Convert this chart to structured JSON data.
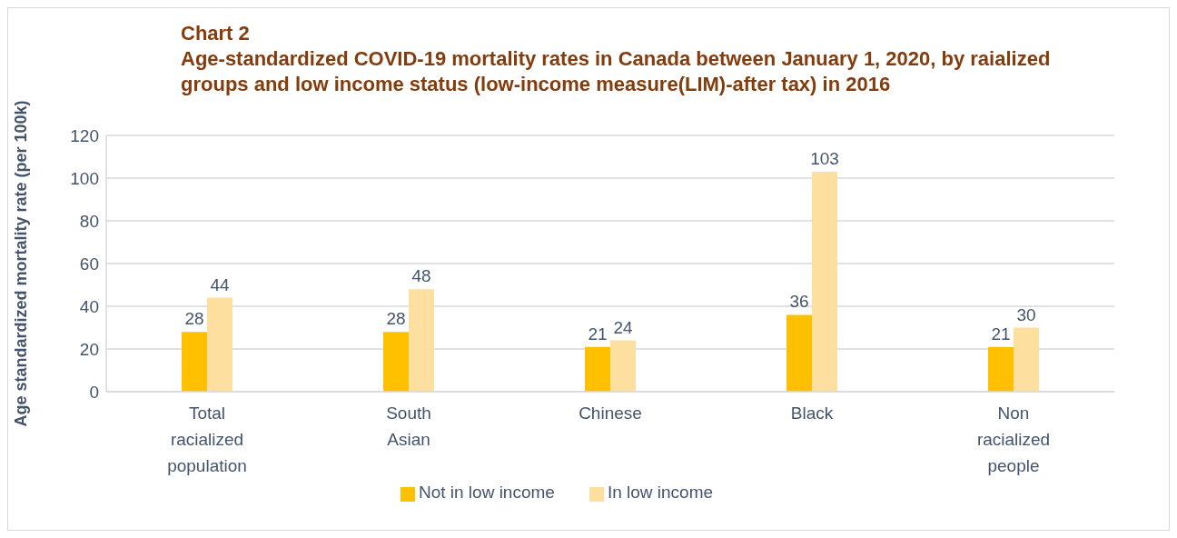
{
  "chart_data": {
    "type": "bar",
    "title": "Chart 2",
    "subtitle": "Age-standardized COVID-19 mortality rates in Canada between January 1, 2020, by raialized groups and low income status (low-income measure(LIM)-after tax) in 2016",
    "ylabel": "Age standardized mortality rate (per 100k)",
    "categories": [
      "Total racialized population",
      "South Asian",
      "Chinese",
      "Black",
      "Non racialized people"
    ],
    "series": [
      {
        "name": "Not in low income",
        "color": "#ffc000",
        "values": [
          28,
          28,
          21,
          36,
          21
        ]
      },
      {
        "name": "In low income",
        "color": "#fddfa0",
        "values": [
          44,
          48,
          24,
          103,
          30
        ]
      }
    ],
    "ylim": [
      0,
      120
    ],
    "yticks": [
      0,
      20,
      40,
      60,
      80,
      100,
      120
    ],
    "grid": "y",
    "legend": "bottom",
    "data_labels": true
  }
}
